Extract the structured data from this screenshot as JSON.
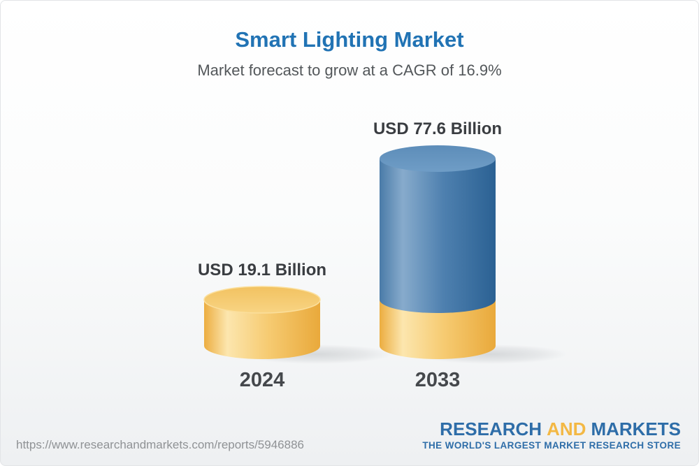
{
  "header": {
    "title": "Smart Lighting Market",
    "subtitle": "Market forecast to grow at a CAGR of 16.9%"
  },
  "chart_data": {
    "type": "bar",
    "subtype": "3d-cylinder",
    "title": "Smart Lighting Market",
    "subtitle": "Market forecast to grow at a CAGR of 16.9%",
    "cagr_percent": 16.9,
    "unit": "USD Billion",
    "categories": [
      "2024",
      "2033"
    ],
    "values": [
      19.1,
      77.6
    ],
    "value_labels": [
      "USD 19.1 Billion",
      "USD 77.6 Billion"
    ],
    "ylim": [
      0,
      77.6
    ],
    "grid": false,
    "legend": "none",
    "colors": {
      "bar_2024_yellow": "#F5C96F",
      "bar_2033_growth_blue": "#4E80AF"
    },
    "notes": "2033 cylinder is stacked: yellow base segment equals the 2024 value (19.1) with blue growth segment above it up to 77.6"
  },
  "footer": {
    "url": "https://www.researchandmarkets.com/reports/5946886",
    "logo": {
      "part1": "RESEARCH",
      "part2": "AND",
      "part3": "MARKETS",
      "tagline": "THE WORLD'S LARGEST MARKET RESEARCH STORE",
      "blue": "#2E6DA8",
      "yellow": "#F3B844"
    }
  },
  "colors": {
    "title_blue": "#2173B4",
    "subtitle_gray": "#53575A",
    "label_dark": "#3A3D41",
    "url_gray": "#8F9295",
    "background_bottom": "#EEF0F2"
  }
}
